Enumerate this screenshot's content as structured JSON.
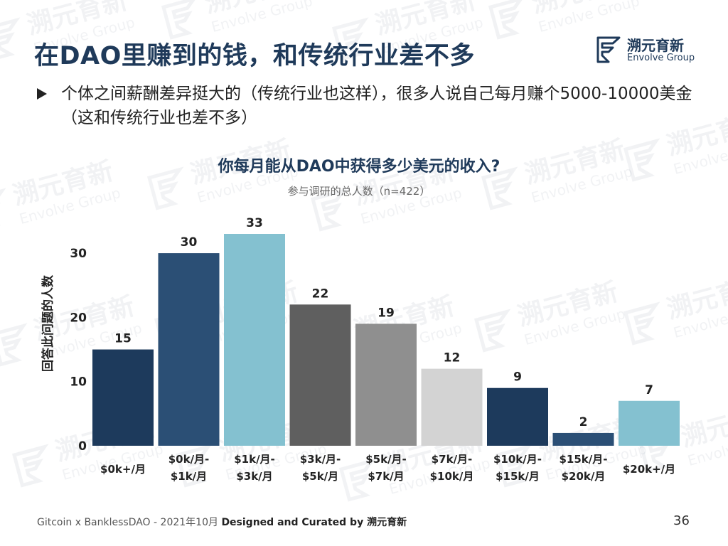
{
  "slide": {
    "title": "在DAO里赚到的钱，和传统行业差不多",
    "bullet": "个体之间薪酬差异挺大的（传统行业也这样），很多人说自己每月赚个5000-10000美金（这和传统行业也差不多）",
    "footer_prefix": "Gitcoin x BanklessDAO - 2021年10月 ",
    "footer_bold": "Designed and Curated by 溯元育新",
    "page_number": "36"
  },
  "logo": {
    "name_cn": "溯元育新",
    "name_en": "Envolve Group",
    "color": "#1f3a5a"
  },
  "watermark": {
    "text_cn": "溯元育新",
    "text_en": "Envolve Group"
  },
  "chart_data": {
    "type": "bar",
    "title": "你每月能从DAO中获得多少美元的收入?",
    "subtitle": "参与调研的总人数（n=422）",
    "ylabel": "回答此问题的人数",
    "xlabel": "",
    "ylim": [
      0,
      33
    ],
    "yticks": [
      0,
      10,
      20,
      30
    ],
    "categories": [
      [
        "$0k+/月"
      ],
      [
        "$0k/月-",
        "$1k/月"
      ],
      [
        "$1k/月-",
        "$3k/月"
      ],
      [
        "$3k/月-",
        "$5k/月"
      ],
      [
        "$5k/月-",
        "$7k/月"
      ],
      [
        "$7k/月-",
        "$10k/月"
      ],
      [
        "$10k/月-",
        "$15k/月"
      ],
      [
        "$15k/月-",
        "$20k/月"
      ],
      [
        "$20k+/月"
      ]
    ],
    "values": [
      15,
      30,
      33,
      22,
      19,
      12,
      9,
      2,
      7
    ],
    "colors": [
      "#1d3a5c",
      "#2b4f75",
      "#84c1d0",
      "#5f5f5f",
      "#8f8f8f",
      "#d3d3d3",
      "#1d3a5c",
      "#2b4f75",
      "#84c1d0"
    ],
    "grid": false,
    "legend": "none"
  }
}
